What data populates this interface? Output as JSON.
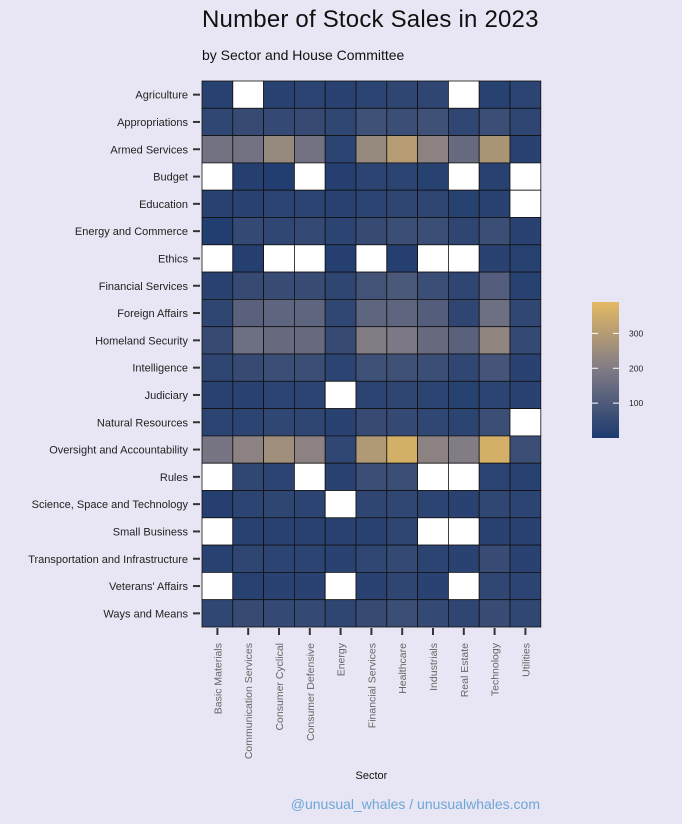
{
  "header": {
    "title": "Number of Stock Sales in 2023",
    "subtitle": "by Sector and House Committee"
  },
  "credit": "@unusual_whales / unusualwhales.com",
  "colors": {
    "background": "#e8e6f4",
    "low": "#1d3a6e",
    "mid": "#7f7a86",
    "high": "#e3b963",
    "missing": "#ffffff",
    "cell_border": "#111111"
  },
  "chart_data": {
    "type": "heatmap",
    "title": "Number of Stock Sales in 2023",
    "subtitle": "by Sector and House Committee",
    "xlabel": "Sector",
    "ylabel": "",
    "x": [
      "Basic Materials",
      "Communication Services",
      "Consumer Cyclical",
      "Consumer Defensive",
      "Energy",
      "Financial Services",
      "Healthcare",
      "Industrials",
      "Real Estate",
      "Technology",
      "Utilities"
    ],
    "y": [
      "Agriculture",
      "Appropriations",
      "Armed Services",
      "Budget",
      "Education",
      "Energy and Commerce",
      "Ethics",
      "Financial Services",
      "Foreign Affairs",
      "Homeland Security",
      "Intelligence",
      "Judiciary",
      "Natural Resources",
      "Oversight and Accountability",
      "Rules",
      "Science, Space and Technology",
      "Small Business",
      "Transportation and Infrastructure",
      "Veterans' Affairs",
      "Ways and Means"
    ],
    "values": [
      [
        20,
        null,
        25,
        30,
        25,
        30,
        35,
        35,
        null,
        20,
        30
      ],
      [
        40,
        50,
        45,
        50,
        40,
        70,
        60,
        70,
        40,
        60,
        35
      ],
      [
        170,
        170,
        240,
        170,
        30,
        240,
        300,
        220,
        150,
        280,
        25
      ],
      [
        null,
        15,
        10,
        null,
        15,
        30,
        30,
        20,
        null,
        20,
        null
      ],
      [
        20,
        25,
        30,
        30,
        25,
        30,
        35,
        35,
        20,
        25,
        null
      ],
      [
        10,
        45,
        40,
        45,
        30,
        50,
        60,
        60,
        35,
        60,
        25
      ],
      [
        null,
        15,
        null,
        null,
        15,
        null,
        15,
        null,
        null,
        25,
        20
      ],
      [
        25,
        50,
        55,
        55,
        35,
        75,
        90,
        60,
        35,
        110,
        20
      ],
      [
        35,
        120,
        130,
        130,
        40,
        130,
        130,
        110,
        35,
        160,
        40
      ],
      [
        50,
        160,
        150,
        150,
        50,
        200,
        190,
        150,
        120,
        230,
        45
      ],
      [
        35,
        50,
        60,
        60,
        30,
        70,
        70,
        60,
        40,
        80,
        25
      ],
      [
        25,
        25,
        30,
        30,
        null,
        30,
        35,
        30,
        20,
        30,
        25
      ],
      [
        30,
        30,
        40,
        35,
        25,
        50,
        45,
        40,
        30,
        60,
        null
      ],
      [
        180,
        220,
        260,
        220,
        40,
        290,
        360,
        220,
        200,
        360,
        60
      ],
      [
        null,
        40,
        30,
        null,
        25,
        60,
        60,
        null,
        null,
        30,
        20
      ],
      [
        15,
        30,
        35,
        30,
        null,
        35,
        40,
        30,
        25,
        40,
        30
      ],
      [
        null,
        25,
        25,
        25,
        25,
        25,
        35,
        null,
        null,
        25,
        25
      ],
      [
        20,
        35,
        30,
        30,
        25,
        40,
        45,
        30,
        25,
        55,
        25
      ],
      [
        null,
        20,
        25,
        25,
        null,
        25,
        35,
        25,
        null,
        40,
        30
      ],
      [
        40,
        50,
        45,
        45,
        35,
        50,
        60,
        45,
        35,
        55,
        40
      ]
    ],
    "missing_color": "white",
    "colorbar": {
      "ticks": [
        100,
        200,
        300
      ],
      "range": [
        0,
        390
      ],
      "placement": "right"
    },
    "grid": false
  }
}
